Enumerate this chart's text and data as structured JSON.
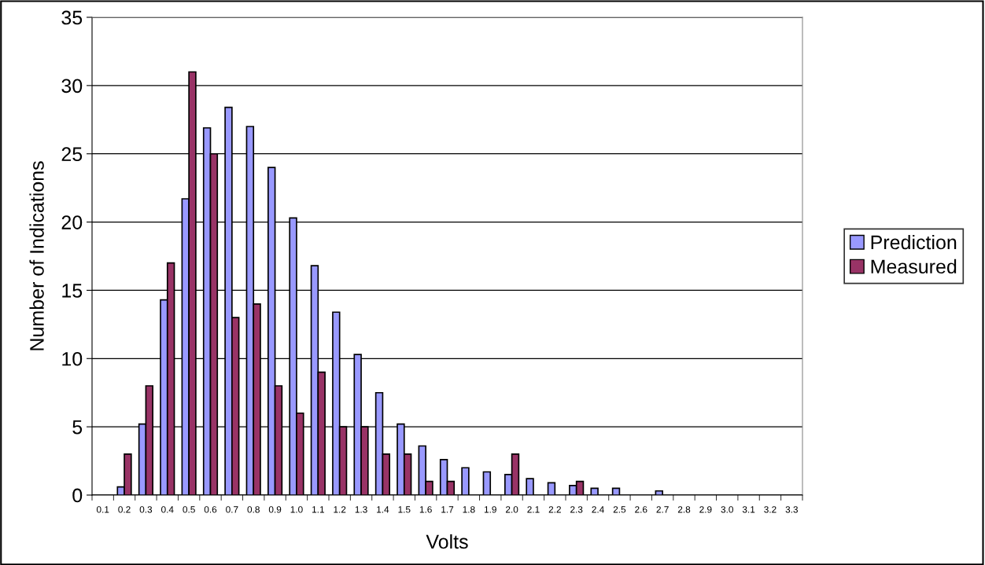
{
  "chart_data": {
    "type": "bar",
    "xlabel": "Volts",
    "ylabel": "Number of Indications",
    "categories": [
      "0.1",
      "0.2",
      "0.3",
      "0.4",
      "0.5",
      "0.6",
      "0.7",
      "0.8",
      "0.9",
      "1.0",
      "1.1",
      "1.2",
      "1.3",
      "1.4",
      "1.5",
      "1.6",
      "1.7",
      "1.8",
      "1.9",
      "2.0",
      "2.1",
      "2.2",
      "2.3",
      "2.4",
      "2.5",
      "2.6",
      "2.7",
      "2.8",
      "2.9",
      "3.0",
      "3.1",
      "3.2",
      "3.3"
    ],
    "series": [
      {
        "name": "Prediction",
        "color": "#9999ff",
        "values": [
          0,
          0.6,
          5.2,
          14.3,
          21.7,
          26.9,
          28.4,
          27.0,
          24.0,
          20.3,
          16.8,
          13.4,
          10.3,
          7.5,
          5.2,
          3.6,
          2.6,
          2.0,
          1.7,
          1.5,
          1.2,
          0.9,
          0.7,
          0.5,
          0.5,
          0,
          0.3,
          0,
          0,
          0,
          0,
          0,
          0
        ]
      },
      {
        "name": "Measured",
        "color": "#993366",
        "values": [
          0,
          3,
          8,
          17,
          31,
          25,
          13,
          14,
          8,
          6,
          9,
          5,
          5,
          3,
          3,
          1,
          1,
          0,
          0,
          3,
          0,
          0,
          1,
          0,
          0,
          0,
          0,
          0,
          0,
          0,
          0,
          0,
          0
        ]
      }
    ],
    "ylim": [
      0,
      35
    ],
    "yticks": [
      0,
      5,
      10,
      15,
      20,
      25,
      30,
      35
    ],
    "grid": "y",
    "legend": "right"
  }
}
